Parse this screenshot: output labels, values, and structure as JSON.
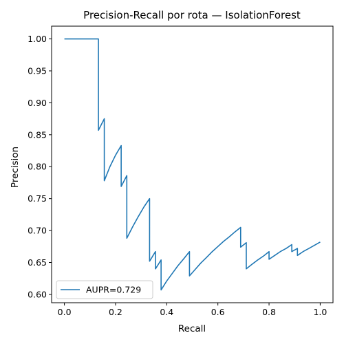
{
  "chart_data": {
    "type": "line",
    "title": "Precision-Recall por rota — IsolationForest",
    "xlabel": "Recall",
    "ylabel": "Precision",
    "xlim": [
      -0.05,
      1.05
    ],
    "ylim": [
      0.587,
      1.02
    ],
    "xticks": [
      0.0,
      0.2,
      0.4,
      0.6,
      0.8,
      1.0
    ],
    "xtick_labels": [
      "0.0",
      "0.2",
      "0.4",
      "0.6",
      "0.8",
      "1.0"
    ],
    "yticks": [
      0.6,
      0.65,
      0.7,
      0.75,
      0.8,
      0.85,
      0.9,
      0.95,
      1.0
    ],
    "ytick_labels": [
      "0.60",
      "0.65",
      "0.70",
      "0.75",
      "0.80",
      "0.85",
      "0.90",
      "0.95",
      "1.00"
    ],
    "grid": false,
    "legend_position": "lower-left",
    "series": [
      {
        "name": "AUPR=0.729",
        "color": "#1f77b4",
        "x": [
          0.0,
          0.133,
          0.133,
          0.156,
          0.156,
          0.178,
          0.2,
          0.222,
          0.222,
          0.244,
          0.244,
          0.267,
          0.289,
          0.311,
          0.333,
          0.333,
          0.356,
          0.356,
          0.378,
          0.378,
          0.4,
          0.422,
          0.444,
          0.467,
          0.489,
          0.489,
          0.511,
          0.533,
          0.556,
          0.578,
          0.6,
          0.622,
          0.644,
          0.667,
          0.689,
          0.689,
          0.711,
          0.711,
          0.733,
          0.756,
          0.778,
          0.8,
          0.8,
          0.822,
          0.844,
          0.867,
          0.889,
          0.889,
          0.911,
          0.911,
          0.933,
          0.956,
          0.978,
          1.0
        ],
        "y": [
          1.0,
          1.0,
          0.857,
          0.875,
          0.778,
          0.8,
          0.818,
          0.833,
          0.769,
          0.786,
          0.688,
          0.706,
          0.722,
          0.737,
          0.75,
          0.652,
          0.667,
          0.64,
          0.654,
          0.607,
          0.621,
          0.633,
          0.645,
          0.656,
          0.667,
          0.629,
          0.639,
          0.649,
          0.658,
          0.667,
          0.675,
          0.683,
          0.69,
          0.698,
          0.705,
          0.674,
          0.681,
          0.64,
          0.647,
          0.654,
          0.66,
          0.667,
          0.655,
          0.661,
          0.667,
          0.672,
          0.678,
          0.667,
          0.672,
          0.661,
          0.667,
          0.672,
          0.677,
          0.682
        ]
      }
    ]
  }
}
